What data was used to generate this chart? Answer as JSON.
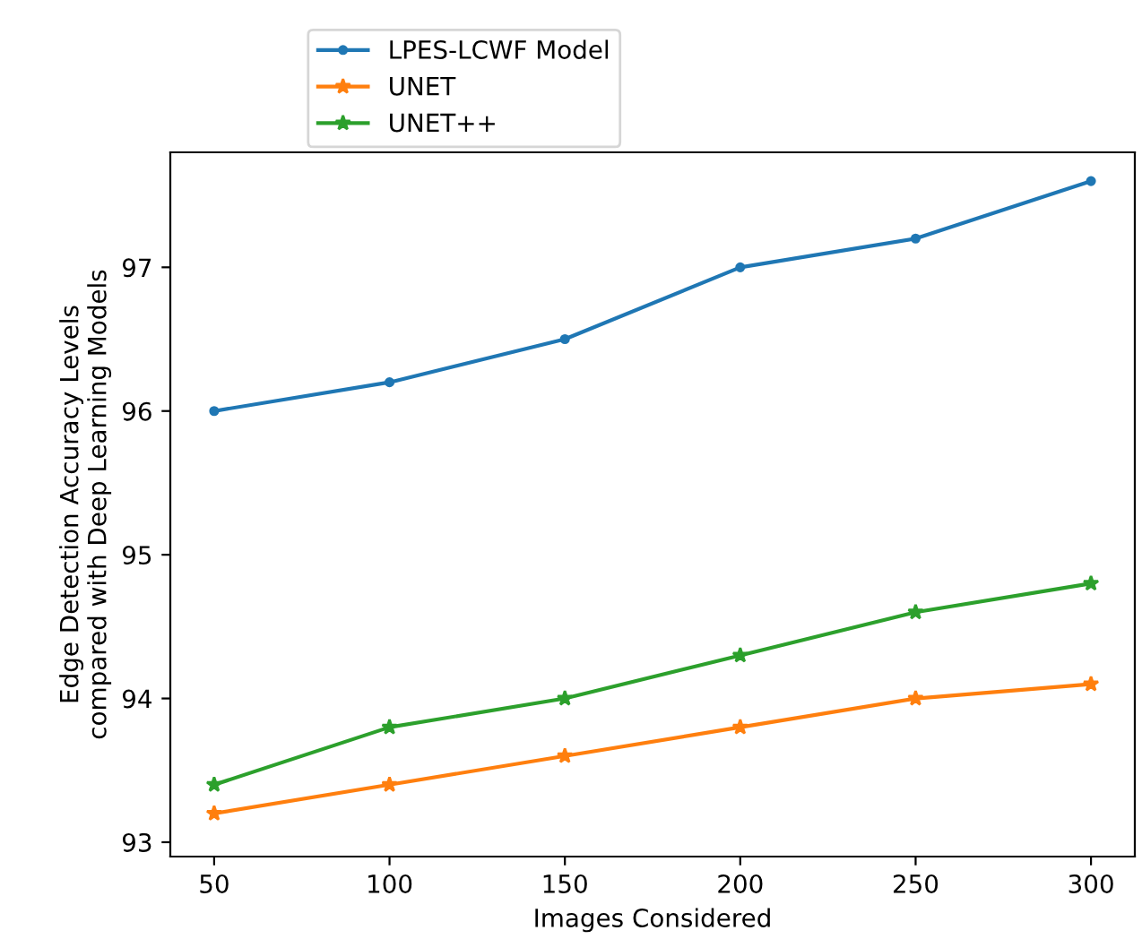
{
  "chart_data": {
    "type": "line",
    "xlabel": "Images Considered",
    "ylabel": "Edge Detection Accuracy Levels\ncompared with Deep Learning Models",
    "x": [
      50,
      100,
      150,
      200,
      250,
      300
    ],
    "series": [
      {
        "name": "LPES-LCWF Model",
        "color": "#1f77b4",
        "marker": "circle",
        "values": [
          96.0,
          96.2,
          96.5,
          97.0,
          97.2,
          97.6
        ]
      },
      {
        "name": "UNET",
        "color": "#ff7f0e",
        "marker": "star",
        "values": [
          93.2,
          93.4,
          93.6,
          93.8,
          94.0,
          94.1
        ]
      },
      {
        "name": "UNET++",
        "color": "#2ca02c",
        "marker": "star",
        "values": [
          93.4,
          93.8,
          94.0,
          94.3,
          94.6,
          94.8
        ]
      }
    ],
    "xlim": [
      37.5,
      312.5
    ],
    "xticks": [
      50,
      100,
      150,
      200,
      250,
      300
    ],
    "ylim": [
      92.9,
      97.8
    ],
    "yticks": [
      93,
      94,
      95,
      96,
      97
    ],
    "grid": false,
    "legend": "top"
  }
}
